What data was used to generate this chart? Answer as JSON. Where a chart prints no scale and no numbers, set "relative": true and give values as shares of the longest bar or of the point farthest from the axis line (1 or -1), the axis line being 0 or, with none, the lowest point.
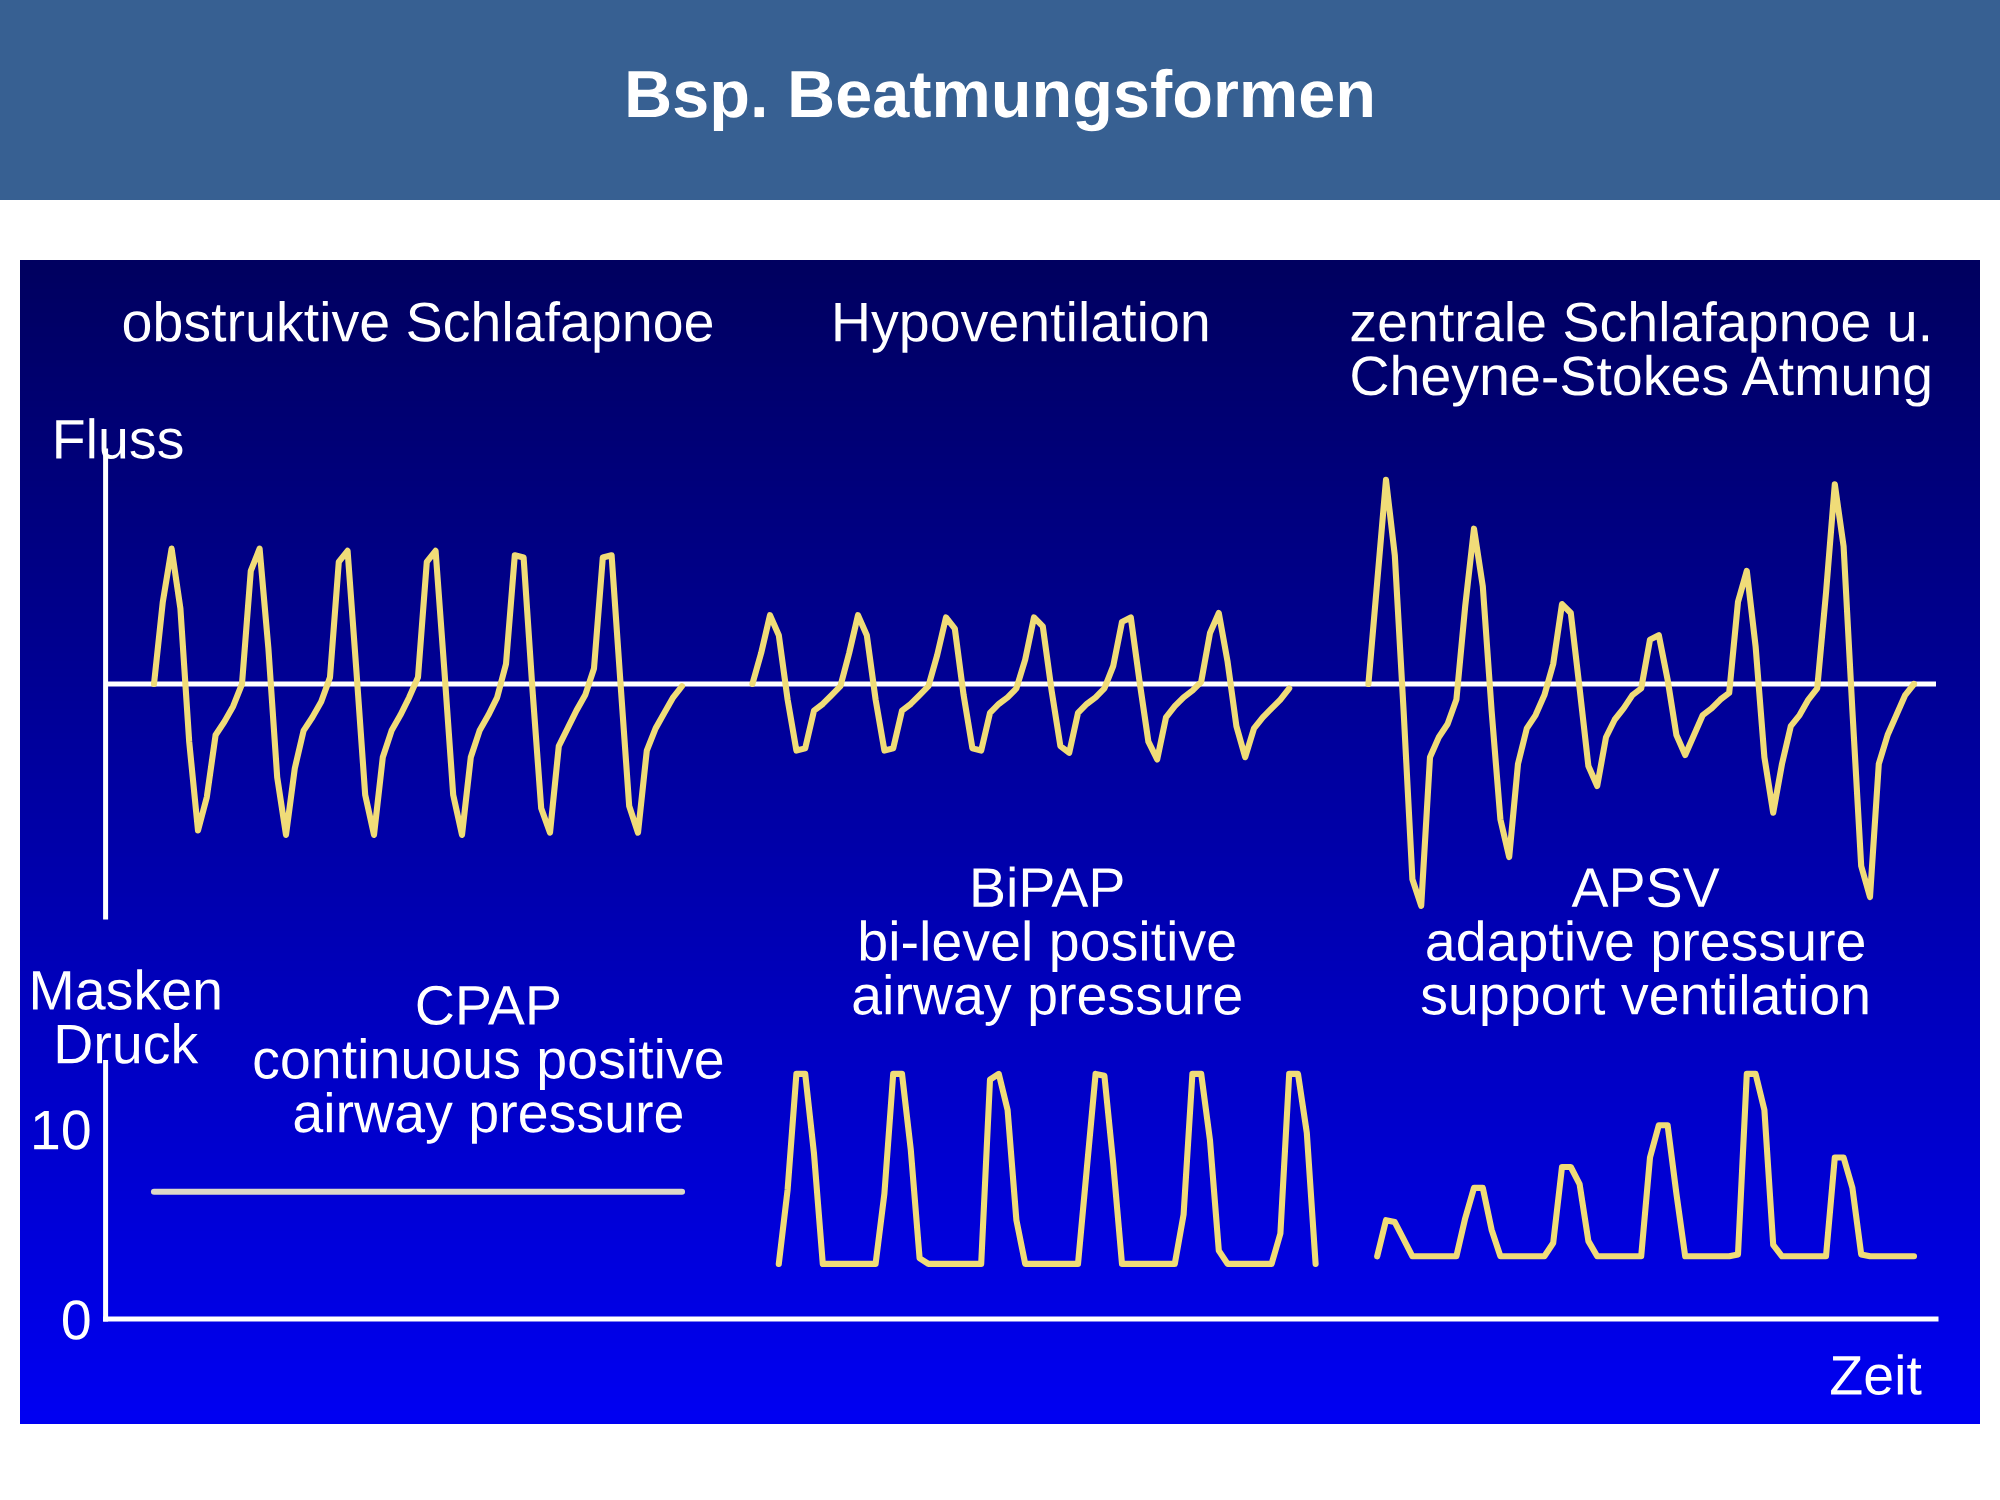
{
  "chart_data": [
    {
      "type": "line",
      "title": "Bsp. Beatmungsformen",
      "ylabel": "Fluss",
      "relative": true,
      "ref_lines": [
        {
          "axis": "y",
          "value": 0,
          "color": "#ffffff"
        }
      ],
      "categories": [
        null,
        null,
        null,
        null,
        null,
        null,
        null,
        null,
        null,
        null,
        null,
        null,
        null,
        null,
        null,
        null,
        null,
        null,
        null,
        null,
        null,
        null,
        null,
        null,
        null,
        null,
        null,
        null,
        null,
        null,
        null,
        null,
        null,
        null,
        null,
        null,
        null,
        null,
        null,
        null,
        null,
        null,
        null,
        null,
        null,
        null,
        null,
        null,
        null,
        null,
        null,
        null,
        null,
        null,
        null,
        null,
        null,
        null,
        null,
        null,
        null,
        null,
        null,
        null,
        null,
        null,
        null,
        null,
        null,
        null,
        null,
        null,
        null,
        null,
        null,
        null,
        null,
        null,
        null,
        null,
        null,
        null,
        null,
        null,
        null,
        null,
        null,
        null,
        null,
        null,
        null,
        null,
        null,
        null,
        null,
        null,
        null,
        null,
        null,
        null,
        null,
        null,
        null,
        null,
        null,
        null,
        null,
        null,
        null,
        null,
        null,
        null,
        null,
        null,
        null,
        null,
        null,
        null,
        null,
        null,
        null,
        null,
        null,
        null,
        null,
        null,
        null,
        null,
        null,
        null,
        null,
        null,
        null,
        null,
        null,
        null,
        null,
        null,
        null,
        null,
        null,
        null,
        null,
        null,
        null,
        null,
        null,
        null,
        null,
        null,
        null,
        null,
        null,
        null,
        null,
        null,
        null,
        null,
        null,
        null,
        null,
        null,
        null,
        null,
        null,
        null,
        null,
        null,
        null,
        null,
        null,
        null,
        null,
        null,
        null,
        null,
        null,
        null,
        null,
        null,
        null,
        null,
        null,
        null,
        null,
        null,
        null,
        null,
        null,
        null,
        null,
        null,
        null,
        null,
        null,
        null,
        null,
        null,
        null,
        null,
        null,
        null,
        null,
        null,
        null,
        null,
        null,
        null
      ],
      "series": [
        {
          "color": "#f0dc78",
          "values": [
            null,
            null,
            null,
            null,
            null,
            0,
            0.37,
            0.61,
            0.34,
            -0.26,
            -0.66,
            -0.51,
            -0.23,
            -0.17,
            -0.1,
            0,
            0.51,
            0.61,
            0.16,
            -0.42,
            -0.68,
            -0.38,
            -0.21,
            -0.15,
            -0.08,
            0.03,
            0.55,
            0.6,
            0.06,
            -0.5,
            -0.68,
            -0.33,
            -0.21,
            -0.14,
            -0.06,
            0.03,
            0.55,
            0.6,
            0.06,
            -0.5,
            -0.68,
            -0.33,
            -0.21,
            -0.14,
            -0.06,
            0.09,
            0.58,
            0.57,
            -0.02,
            -0.56,
            -0.67,
            -0.28,
            -0.2,
            -0.12,
            -0.05,
            0.07,
            0.57,
            0.58,
            0.01,
            -0.55,
            -0.67,
            -0.3,
            -0.2,
            -0.13,
            -0.06,
            -0.01,
            null,
            null,
            null,
            null,
            null,
            null,
            null,
            null,
            null,
            null,
            null,
            null,
            null,
            null,
            null,
            null,
            null,
            null,
            null,
            null,
            null,
            null,
            null,
            null,
            null,
            null,
            null,
            null,
            null,
            null,
            null,
            null,
            null,
            null,
            null,
            null,
            null,
            null,
            null,
            null,
            null,
            null,
            null,
            null,
            null,
            null,
            null,
            null,
            null,
            null,
            null,
            null,
            null,
            null,
            null,
            null,
            null,
            null,
            null,
            null,
            null,
            null,
            null,
            null,
            null,
            null,
            null,
            null,
            null,
            null,
            null,
            null,
            null,
            null,
            null,
            null,
            null,
            null,
            null,
            null,
            null,
            null,
            null,
            null,
            null,
            null,
            null,
            null,
            null,
            null,
            null,
            null,
            null,
            null,
            null,
            null,
            null,
            null,
            null,
            null,
            null,
            null,
            null,
            null,
            null,
            null,
            null,
            null,
            null,
            null,
            null,
            null,
            null,
            null,
            null,
            null,
            null,
            null,
            null,
            null,
            null,
            null,
            null,
            null,
            null,
            null,
            null,
            null,
            null,
            null,
            null,
            null,
            null,
            null,
            null,
            null,
            null,
            null,
            null,
            null,
            null,
            null
          ]
        },
        {
          "color": "#f0dc78",
          "values": [
            null,
            null,
            null,
            null,
            null,
            null,
            null,
            null,
            null,
            null,
            null,
            null,
            null,
            null,
            null,
            null,
            null,
            null,
            null,
            null,
            null,
            null,
            null,
            null,
            null,
            null,
            null,
            null,
            null,
            null,
            null,
            null,
            null,
            null,
            null,
            null,
            null,
            null,
            null,
            null,
            null,
            null,
            null,
            null,
            null,
            null,
            null,
            null,
            null,
            null,
            null,
            null,
            null,
            null,
            null,
            null,
            null,
            null,
            null,
            null,
            null,
            null,
            null,
            null,
            null,
            null,
            null,
            null,
            null,
            null,
            null,
            null,
            null,
            0,
            0.14,
            0.31,
            0.22,
            -0.07,
            -0.3,
            -0.29,
            -0.12,
            -0.09,
            -0.05,
            -0.01,
            0.14,
            0.31,
            0.22,
            -0.07,
            -0.3,
            -0.29,
            -0.12,
            -0.09,
            -0.05,
            -0.01,
            0.13,
            0.3,
            0.25,
            -0.05,
            -0.29,
            -0.3,
            -0.13,
            -0.09,
            -0.06,
            -0.02,
            0.11,
            0.3,
            0.26,
            -0.03,
            -0.28,
            -0.31,
            -0.13,
            -0.09,
            -0.06,
            -0.02,
            0.08,
            0.28,
            0.3,
            0.01,
            -0.26,
            -0.34,
            -0.15,
            -0.1,
            -0.06,
            -0.03,
            0.01,
            0.23,
            0.32,
            0.1,
            -0.19,
            -0.33,
            -0.2,
            -0.15,
            -0.11,
            -0.07,
            -0.02,
            null,
            null,
            null,
            null,
            null,
            null,
            null,
            null,
            null,
            null,
            null,
            null,
            null,
            null,
            null,
            null,
            null,
            null,
            null,
            null,
            null,
            null,
            null,
            null,
            null,
            null,
            null,
            null,
            null,
            null,
            null,
            null,
            null,
            null,
            null,
            null,
            null,
            null,
            null,
            null,
            null,
            null,
            null,
            null,
            null,
            null,
            null,
            null,
            null,
            null,
            null,
            null,
            null,
            null,
            null,
            null,
            null,
            null,
            null,
            null,
            null,
            null,
            null,
            null,
            null,
            null,
            null,
            null,
            null,
            null,
            null,
            null,
            null
          ]
        },
        {
          "color": "#f0dc78",
          "values": [
            null,
            null,
            null,
            null,
            null,
            null,
            null,
            null,
            null,
            null,
            null,
            null,
            null,
            null,
            null,
            null,
            null,
            null,
            null,
            null,
            null,
            null,
            null,
            null,
            null,
            null,
            null,
            null,
            null,
            null,
            null,
            null,
            null,
            null,
            null,
            null,
            null,
            null,
            null,
            null,
            null,
            null,
            null,
            null,
            null,
            null,
            null,
            null,
            null,
            null,
            null,
            null,
            null,
            null,
            null,
            null,
            null,
            null,
            null,
            null,
            null,
            null,
            null,
            null,
            null,
            null,
            null,
            null,
            null,
            null,
            null,
            null,
            null,
            null,
            null,
            null,
            null,
            null,
            null,
            null,
            null,
            null,
            null,
            null,
            null,
            null,
            null,
            null,
            null,
            null,
            null,
            null,
            null,
            null,
            null,
            null,
            null,
            null,
            null,
            null,
            null,
            null,
            null,
            null,
            null,
            null,
            null,
            null,
            null,
            null,
            null,
            null,
            null,
            null,
            null,
            null,
            null,
            null,
            null,
            null,
            null,
            null,
            null,
            null,
            null,
            null,
            null,
            null,
            null,
            null,
            null,
            null,
            null,
            null,
            null,
            null,
            null,
            null,
            null,
            null,
            null,
            null,
            null,
            0,
            0.46,
            0.92,
            0.58,
            -0.12,
            -0.88,
            -1,
            -0.33,
            -0.24,
            -0.18,
            -0.07,
            0.35,
            0.7,
            0.44,
            -0.12,
            -0.61,
            -0.78,
            -0.36,
            -0.2,
            -0.14,
            -0.05,
            0.09,
            0.36,
            0.32,
            -0.02,
            -0.37,
            -0.46,
            -0.24,
            -0.16,
            -0.11,
            -0.05,
            -0.02,
            0.2,
            0.22,
            0.02,
            -0.23,
            -0.32,
            -0.23,
            -0.14,
            -0.11,
            -0.07,
            -0.04,
            0.37,
            0.51,
            0.17,
            -0.33,
            -0.58,
            -0.36,
            -0.19,
            -0.14,
            -0.07,
            -0.02,
            0.41,
            0.9,
            0.62,
            -0.12,
            -0.82,
            -0.96,
            -0.36,
            -0.23,
            -0.14,
            -0.05,
            0,
            null,
            null
          ]
        }
      ],
      "annotations": [
        "obstruktive Schlafapnoe",
        "Hypoventilation",
        "zentrale Schlafapnoe u.\nCheyne-Stokes Atmung"
      ]
    },
    {
      "type": "line",
      "ylabel": "Masken\nDruck",
      "xlabel": "Zeit",
      "ylim": [
        0,
        13.5
      ],
      "yticks": [
        0,
        10
      ],
      "tick_labels": "y",
      "categories": [
        null,
        null,
        null,
        null,
        null,
        null,
        null,
        null,
        null,
        null,
        null,
        null,
        null,
        null,
        null,
        null,
        null,
        null,
        null,
        null,
        null,
        null,
        null,
        null,
        null,
        null,
        null,
        null,
        null,
        null,
        null,
        null,
        null,
        null,
        null,
        null,
        null,
        null,
        null,
        null,
        null,
        null,
        null,
        null,
        null,
        null,
        null,
        null,
        null,
        null,
        null,
        null,
        null,
        null,
        null,
        null,
        null,
        null,
        null,
        null,
        null,
        null,
        null,
        null,
        null,
        null,
        null,
        null,
        null,
        null,
        null,
        null,
        null,
        null,
        null,
        null,
        null,
        null,
        null,
        null,
        null,
        null,
        null,
        null,
        null,
        null,
        null,
        null,
        null,
        null,
        null,
        null,
        null,
        null,
        null,
        null,
        null,
        null,
        null,
        null,
        null,
        null,
        null,
        null,
        null,
        null,
        null,
        null,
        null,
        null,
        null,
        null,
        null,
        null,
        null,
        null,
        null,
        null,
        null,
        null,
        null,
        null,
        null,
        null,
        null,
        null,
        null,
        null,
        null,
        null,
        null,
        null,
        null,
        null,
        null,
        null,
        null,
        null,
        null,
        null,
        null,
        null,
        null,
        null,
        null,
        null,
        null,
        null,
        null,
        null,
        null,
        null,
        null,
        null,
        null,
        null,
        null,
        null,
        null,
        null,
        null,
        null,
        null,
        null,
        null,
        null,
        null,
        null,
        null,
        null,
        null,
        null,
        null,
        null,
        null,
        null,
        null,
        null,
        null,
        null,
        null,
        null,
        null,
        null,
        null,
        null,
        null,
        null,
        null,
        null,
        null,
        null,
        null,
        null,
        null,
        null,
        null,
        null,
        null,
        null,
        null,
        null,
        null,
        null,
        null,
        null,
        null,
        null
      ],
      "series": [
        {
          "color": "#dcd8c8",
          "values": [
            null,
            null,
            null,
            null,
            null,
            6.7,
            6.7,
            6.7,
            6.7,
            6.7,
            6.7,
            6.7,
            6.7,
            6.7,
            6.7,
            6.7,
            6.7,
            6.7,
            6.7,
            6.7,
            6.7,
            6.7,
            6.7,
            6.7,
            6.7,
            6.7,
            6.7,
            6.7,
            6.7,
            6.7,
            6.7,
            6.7,
            6.7,
            6.7,
            6.7,
            6.7,
            6.7,
            6.7,
            6.7,
            6.7,
            6.7,
            6.7,
            6.7,
            6.7,
            6.7,
            6.7,
            6.7,
            6.7,
            6.7,
            6.7,
            6.7,
            6.7,
            6.7,
            6.7,
            6.7,
            6.7,
            6.7,
            6.7,
            6.7,
            6.7,
            6.7,
            6.7,
            6.7,
            6.7,
            6.7,
            6.7,
            null,
            null,
            null,
            null,
            null,
            null,
            null,
            null,
            null,
            null,
            null,
            null,
            null,
            null,
            null,
            null,
            null,
            null,
            null,
            null,
            null,
            null,
            null,
            null,
            null,
            null,
            null,
            null,
            null,
            null,
            null,
            null,
            null,
            null,
            null,
            null,
            null,
            null,
            null,
            null,
            null,
            null,
            null,
            null,
            null,
            null,
            null,
            null,
            null,
            null,
            null,
            null,
            null,
            null,
            null,
            null,
            null,
            null,
            null,
            null,
            null,
            null,
            null,
            null,
            null,
            null,
            null,
            null,
            null,
            null,
            null,
            null,
            null,
            null,
            null,
            null,
            null,
            null,
            null,
            null,
            null,
            null,
            null,
            null,
            null,
            null,
            null,
            null,
            null,
            null,
            null,
            null,
            null,
            null,
            null,
            null,
            null,
            null,
            null,
            null,
            null,
            null,
            null,
            null,
            null,
            null,
            null,
            null,
            null,
            null,
            null,
            null,
            null,
            null,
            null,
            null,
            null,
            null,
            null,
            null,
            null,
            null,
            null,
            null,
            null,
            null,
            null,
            null,
            null,
            null,
            null,
            null,
            null,
            null,
            null,
            null,
            null,
            null,
            null,
            null,
            null,
            null
          ]
        },
        {
          "color": "#f0dc78",
          "values": [
            null,
            null,
            null,
            null,
            null,
            null,
            null,
            null,
            null,
            null,
            null,
            null,
            null,
            null,
            null,
            null,
            null,
            null,
            null,
            null,
            null,
            null,
            null,
            null,
            null,
            null,
            null,
            null,
            null,
            null,
            null,
            null,
            null,
            null,
            null,
            null,
            null,
            null,
            null,
            null,
            null,
            null,
            null,
            null,
            null,
            null,
            null,
            null,
            null,
            null,
            null,
            null,
            null,
            null,
            null,
            null,
            null,
            null,
            null,
            null,
            null,
            null,
            null,
            null,
            null,
            null,
            null,
            null,
            null,
            null,
            null,
            null,
            null,
            null,
            null,
            null,
            2.9,
            6.8,
            12.9,
            12.9,
            8.7,
            2.9,
            2.9,
            2.9,
            2.9,
            2.9,
            2.9,
            2.9,
            6.6,
            12.9,
            12.9,
            8.9,
            3.2,
            2.9,
            2.9,
            2.9,
            2.9,
            2.9,
            2.9,
            2.9,
            12.6,
            12.9,
            11.0,
            5.2,
            2.9,
            2.9,
            2.9,
            2.9,
            2.9,
            2.9,
            2.9,
            7.9,
            12.9,
            12.8,
            8.2,
            2.9,
            2.9,
            2.9,
            2.9,
            2.9,
            2.9,
            2.9,
            5.5,
            12.9,
            12.9,
            9.4,
            3.6,
            2.9,
            2.9,
            2.9,
            2.9,
            2.9,
            2.9,
            4.5,
            12.9,
            12.9,
            9.8,
            2.9,
            null,
            null,
            null,
            null,
            null,
            null,
            null,
            null,
            null,
            null,
            null,
            null,
            null,
            null,
            null,
            null,
            null,
            null,
            null,
            null,
            null,
            null,
            null,
            null,
            null,
            null,
            null,
            null,
            null,
            null,
            null,
            null,
            null,
            null,
            null,
            null,
            null,
            null,
            null,
            null,
            null,
            null,
            null,
            null,
            null,
            null,
            null,
            null,
            null,
            null,
            null,
            null,
            null,
            null,
            null,
            null,
            null,
            null,
            null,
            null,
            null,
            null,
            null,
            null,
            null,
            null,
            null,
            null,
            null,
            null
          ]
        },
        {
          "color": "#f0dc78",
          "values": [
            null,
            null,
            null,
            null,
            null,
            null,
            null,
            null,
            null,
            null,
            null,
            null,
            null,
            null,
            null,
            null,
            null,
            null,
            null,
            null,
            null,
            null,
            null,
            null,
            null,
            null,
            null,
            null,
            null,
            null,
            null,
            null,
            null,
            null,
            null,
            null,
            null,
            null,
            null,
            null,
            null,
            null,
            null,
            null,
            null,
            null,
            null,
            null,
            null,
            null,
            null,
            null,
            null,
            null,
            null,
            null,
            null,
            null,
            null,
            null,
            null,
            null,
            null,
            null,
            null,
            null,
            null,
            null,
            null,
            null,
            null,
            null,
            null,
            null,
            null,
            null,
            null,
            null,
            null,
            null,
            null,
            null,
            null,
            null,
            null,
            null,
            null,
            null,
            null,
            null,
            null,
            null,
            null,
            null,
            null,
            null,
            null,
            null,
            null,
            null,
            null,
            null,
            null,
            null,
            null,
            null,
            null,
            null,
            null,
            null,
            null,
            null,
            null,
            null,
            null,
            null,
            null,
            null,
            null,
            null,
            null,
            null,
            null,
            null,
            null,
            null,
            null,
            null,
            null,
            null,
            null,
            null,
            null,
            null,
            null,
            null,
            null,
            null,
            null,
            null,
            null,
            null,
            null,
            null,
            3.3,
            5.2,
            5.1,
            4.2,
            3.3,
            3.3,
            3.3,
            3.3,
            3.3,
            3.3,
            5.3,
            6.9,
            6.9,
            4.7,
            3.3,
            3.3,
            3.3,
            3.3,
            3.3,
            3.3,
            4.0,
            8.0,
            8.0,
            7.1,
            4.1,
            3.3,
            3.3,
            3.3,
            3.3,
            3.3,
            3.3,
            8.5,
            10.2,
            10.2,
            6.6,
            3.3,
            3.3,
            3.3,
            3.3,
            3.3,
            3.3,
            3.4,
            12.9,
            12.9,
            11.0,
            3.9,
            3.3,
            3.3,
            3.3,
            3.3,
            3.3,
            3.3,
            8.5,
            8.5,
            6.9,
            3.4,
            3.3,
            3.3,
            3.3,
            3.3,
            3.3,
            3.3,
            null,
            null
          ]
        }
      ],
      "annotations": [
        "CPAP\ncontinuous positive\nairway pressure",
        "BiPAP\nbi-level positive\nairway pressure",
        "APSV\nadaptive pressure\nsupport ventilation"
      ]
    }
  ]
}
